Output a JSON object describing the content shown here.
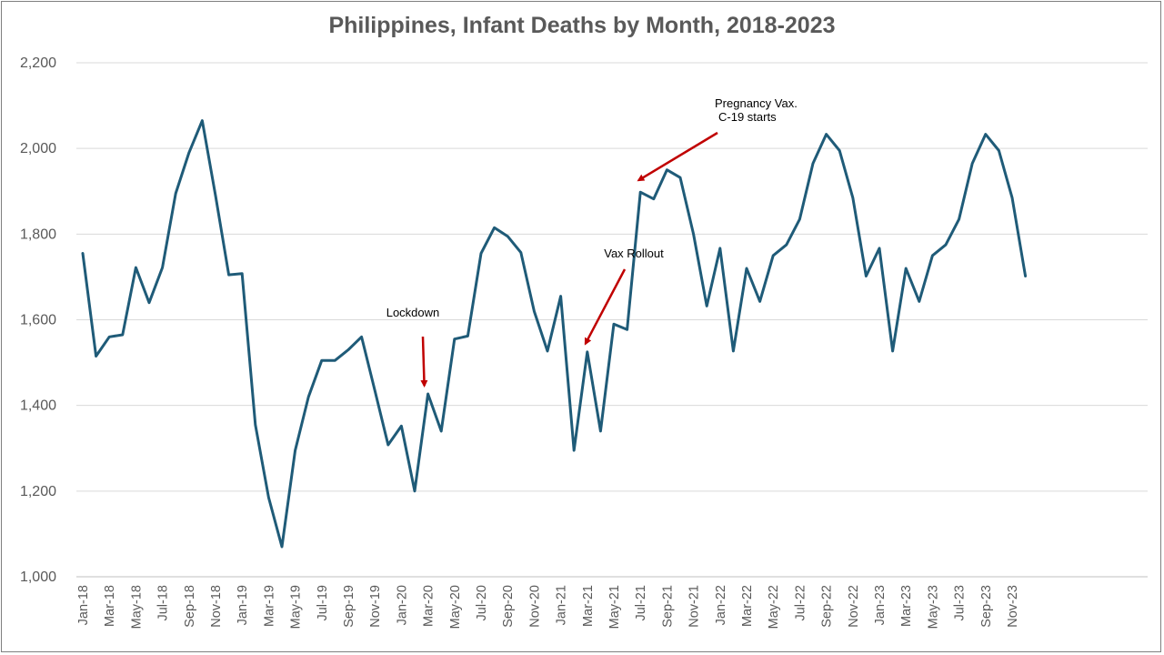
{
  "chart_data": {
    "type": "line",
    "title": "Philippines, Infant Deaths by Month, 2018-2023",
    "xlabel": "",
    "ylabel": "",
    "ylim": [
      1000,
      2200
    ],
    "yticks": [
      1000,
      1200,
      1400,
      1600,
      1800,
      2000,
      2200
    ],
    "ytick_labels": [
      "1,000",
      "1,200",
      "1,400",
      "1,600",
      "1,800",
      "2,000",
      "2,200"
    ],
    "grid": true,
    "line_color": "#1f5b78",
    "arrow_color": "#c00000",
    "categories": [
      "Jan-18",
      "Feb-18",
      "Mar-18",
      "Apr-18",
      "May-18",
      "Jun-18",
      "Jul-18",
      "Aug-18",
      "Sep-18",
      "Oct-18",
      "Nov-18",
      "Dec-18",
      "Jan-19",
      "Feb-19",
      "Mar-19",
      "Apr-19",
      "May-19",
      "Jun-19",
      "Jul-19",
      "Aug-19",
      "Sep-19",
      "Oct-19",
      "Nov-19",
      "Dec-19",
      "Jan-20",
      "Feb-20",
      "Mar-20",
      "Apr-20",
      "May-20",
      "Jun-20",
      "Jul-20",
      "Aug-20",
      "Sep-20",
      "Oct-20",
      "Nov-20",
      "Dec-20",
      "Jan-21",
      "Feb-21",
      "Mar-21",
      "Apr-21",
      "May-21",
      "Jun-21",
      "Jul-21",
      "Aug-21",
      "Sep-21",
      "Oct-21",
      "Nov-21",
      "Dec-21",
      "Jan-22",
      "Feb-22",
      "Mar-22",
      "Apr-22",
      "May-22",
      "Jun-22",
      "Jul-22",
      "Aug-22",
      "Sep-22",
      "Oct-22",
      "Nov-22",
      "Dec-22",
      "Jan-23",
      "Feb-23",
      "Mar-23",
      "Apr-23",
      "May-23",
      "Jun-23",
      "Jul-23",
      "Aug-23",
      "Sep-23",
      "Oct-23",
      "Nov-23",
      "Dec-23"
    ],
    "tick_labels": [
      "Jan-18",
      "Mar-18",
      "May-18",
      "Jul-18",
      "Sep-18",
      "Nov-18",
      "Jan-19",
      "Mar-19",
      "May-19",
      "Jul-19",
      "Sep-19",
      "Nov-19",
      "Jan-20",
      "Mar-20",
      "May-20",
      "Jul-20",
      "Sep-20",
      "Nov-20",
      "Jan-21",
      "Mar-21",
      "May-21",
      "Jul-21",
      "Sep-21",
      "Nov-21",
      "Jan-22",
      "Mar-22",
      "May-22",
      "Jul-22",
      "Sep-22",
      "Nov-22",
      "Jan-23",
      "Mar-23",
      "May-23",
      "Jul-23",
      "Sep-23",
      "Nov-23"
    ],
    "series": [
      {
        "values": [
          1755,
          1515,
          1560,
          1565,
          1722,
          1640,
          1722,
          1895,
          1990,
          2065,
          1890,
          1705,
          1708,
          1355,
          1185,
          1070,
          1295,
          1420,
          1505,
          1505,
          1530,
          1560,
          1435,
          1308,
          1352,
          1200,
          1427,
          1340,
          1555,
          1562,
          1755,
          1815,
          1795,
          1757,
          1620,
          1527,
          1655,
          1295,
          1525,
          1340,
          1590,
          1577,
          1898,
          1882,
          1950,
          1932,
          1800,
          1632,
          1767,
          1527,
          1720,
          1643,
          1750,
          1775,
          1835,
          1965,
          2033,
          1995,
          1885,
          1702,
          1767,
          1527,
          1720,
          1643,
          1750,
          1775,
          1835,
          1965,
          2033,
          1995,
          1885,
          1702
        ]
      }
    ],
    "annotations": [
      {
        "lines": [
          "Lockdown"
        ],
        "target": "Mar-20"
      },
      {
        "lines": [
          "Vax Rollout"
        ],
        "target": "Mar-21"
      },
      {
        "lines": [
          "Pregnancy Vax.",
          "C-19  starts"
        ],
        "target": "Jul-21"
      }
    ]
  }
}
